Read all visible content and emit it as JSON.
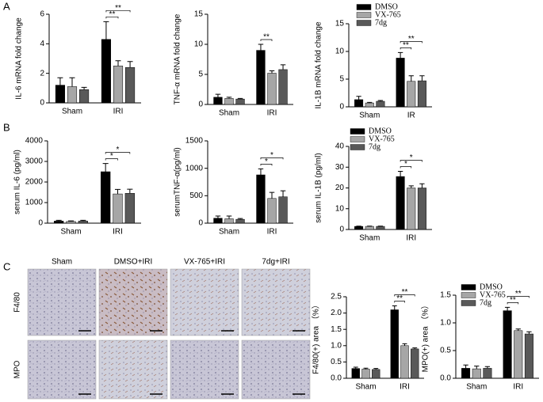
{
  "figure": {
    "panel_labels": [
      "A",
      "B",
      "C"
    ]
  },
  "micrographs": {
    "columns": [
      "Sham",
      "DMSO+IRI",
      "VX-765+IRI",
      "7dg+IRI"
    ],
    "rows": [
      "F4/80",
      "MPO"
    ]
  },
  "chart_data": [
    {
      "type": "bar",
      "ylabel": "IL-6 mRNA fold change",
      "categories": [
        "Sham",
        "IRI"
      ],
      "ylim": [
        0,
        6
      ],
      "yticks": [
        0,
        2,
        4,
        6
      ],
      "series": [
        {
          "name": "DMSO",
          "color": "#000000",
          "values": [
            1.2,
            4.3
          ],
          "errors": [
            0.5,
            1.2
          ]
        },
        {
          "name": "VX-765",
          "color": "#a6a6a6",
          "values": [
            1.1,
            2.5
          ],
          "errors": [
            0.6,
            0.35
          ]
        },
        {
          "name": "7dg",
          "color": "#595959",
          "values": [
            0.9,
            2.4
          ],
          "errors": [
            0.15,
            0.4
          ]
        }
      ],
      "annotations": [
        "**",
        "**"
      ]
    },
    {
      "type": "bar",
      "ylabel": "TNF-α mRNA fold change",
      "categories": [
        "Sham",
        "IRI"
      ],
      "ylim": [
        0,
        15
      ],
      "yticks": [
        0,
        5,
        10,
        15
      ],
      "series": [
        {
          "name": "DMSO",
          "color": "#000000",
          "values": [
            1.2,
            9.0
          ],
          "errors": [
            0.5,
            1.0
          ]
        },
        {
          "name": "VX-765",
          "color": "#a6a6a6",
          "values": [
            1.0,
            5.2
          ],
          "errors": [
            0.2,
            0.4
          ]
        },
        {
          "name": "7dg",
          "color": "#595959",
          "values": [
            0.9,
            5.8
          ],
          "errors": [
            0.1,
            0.8
          ]
        }
      ],
      "annotations": [
        "**"
      ]
    },
    {
      "type": "bar",
      "ylabel": "IL-1B mRNA fold change",
      "categories": [
        "Sham",
        "IR"
      ],
      "ylim": [
        0,
        15
      ],
      "yticks": [
        0,
        5,
        10,
        15
      ],
      "legend": "top",
      "series": [
        {
          "name": "DMSO",
          "color": "#000000",
          "values": [
            1.3,
            8.8
          ],
          "errors": [
            0.6,
            1.0
          ]
        },
        {
          "name": "VX-765",
          "color": "#a6a6a6",
          "values": [
            0.7,
            4.6
          ],
          "errors": [
            0.1,
            1.0
          ]
        },
        {
          "name": "7dg",
          "color": "#595959",
          "values": [
            1.0,
            4.7
          ],
          "errors": [
            0.15,
            0.9
          ]
        }
      ],
      "annotations": [
        "**",
        "**"
      ]
    },
    {
      "type": "bar",
      "ylabel": "serum IL-6 (pg/ml)",
      "categories": [
        "Sham",
        "IRI"
      ],
      "ylim": [
        0,
        4000
      ],
      "yticks": [
        0,
        1000,
        2000,
        3000,
        4000
      ],
      "series": [
        {
          "name": "DMSO",
          "color": "#000000",
          "values": [
            100,
            2500
          ],
          "errors": [
            40,
            400
          ]
        },
        {
          "name": "VX-765",
          "color": "#a6a6a6",
          "values": [
            80,
            1420
          ],
          "errors": [
            30,
            220
          ]
        },
        {
          "name": "7dg",
          "color": "#595959",
          "values": [
            100,
            1450
          ],
          "errors": [
            40,
            200
          ]
        }
      ],
      "annotations": [
        "*",
        "*"
      ]
    },
    {
      "type": "bar",
      "ylabel": "serumTNF-α(pg/ml)",
      "categories": [
        "Sham",
        "IRI"
      ],
      "ylim": [
        0,
        1500
      ],
      "yticks": [
        0,
        500,
        1000,
        1500
      ],
      "series": [
        {
          "name": "DMSO",
          "color": "#000000",
          "values": [
            90,
            880
          ],
          "errors": [
            40,
            110
          ]
        },
        {
          "name": "VX-765",
          "color": "#a6a6a6",
          "values": [
            80,
            450
          ],
          "errors": [
            50,
            110
          ]
        },
        {
          "name": "7dg",
          "color": "#595959",
          "values": [
            70,
            480
          ],
          "errors": [
            15,
            110
          ]
        }
      ],
      "annotations": [
        "*",
        "*"
      ]
    },
    {
      "type": "bar",
      "ylabel": "serum IL-1B (pg/ml)",
      "categories": [
        "Sham",
        "IRI"
      ],
      "ylim": [
        0,
        40
      ],
      "yticks": [
        0,
        10,
        20,
        30,
        40
      ],
      "legend": "top",
      "series": [
        {
          "name": "DMSO",
          "color": "#000000",
          "values": [
            1.5,
            25.5
          ],
          "errors": [
            0.1,
            2.5
          ]
        },
        {
          "name": "VX-765",
          "color": "#a6a6a6",
          "values": [
            1.5,
            20
          ],
          "errors": [
            0.1,
            1.0
          ]
        },
        {
          "name": "7dg",
          "color": "#595959",
          "values": [
            1.5,
            20
          ],
          "errors": [
            0.1,
            2.0
          ]
        }
      ],
      "annotations": [
        "*",
        "*"
      ]
    },
    {
      "type": "bar",
      "ylabel": "F4/80(+) area （%）",
      "categories": [
        "Sham",
        "IRI"
      ],
      "ylim": [
        0,
        2.5
      ],
      "yticks": [
        {
          "value": 0,
          "label": "0.0"
        },
        {
          "value": 0.5,
          "label": "0.5"
        },
        {
          "value": 1,
          "label": "1.0"
        },
        {
          "value": 1.5,
          "label": "1.5"
        },
        {
          "value": 2,
          "label": "2.0"
        },
        {
          "value": 2.5,
          "label": "2.5"
        }
      ],
      "series": [
        {
          "name": "DMSO",
          "color": "#000000",
          "values": [
            0.3,
            2.1
          ],
          "errors": [
            0.04,
            0.12
          ]
        },
        {
          "name": "VX-765",
          "color": "#a6a6a6",
          "values": [
            0.28,
            1.0
          ],
          "errors": [
            0.03,
            0.06
          ]
        },
        {
          "name": "7dg",
          "color": "#595959",
          "values": [
            0.27,
            0.9
          ],
          "errors": [
            0.03,
            0.03
          ]
        }
      ],
      "annotations": [
        "**",
        "**"
      ]
    },
    {
      "type": "bar",
      "ylabel": "MPO(+) area （%）",
      "categories": [
        "Sham",
        "IRI"
      ],
      "ylim": [
        0,
        1.5
      ],
      "yticks": [
        {
          "value": 0,
          "label": "0.0"
        },
        {
          "value": 0.5,
          "label": "0.5"
        },
        {
          "value": 1,
          "label": "1.0"
        },
        {
          "value": 1.5,
          "label": "1.5"
        }
      ],
      "legend": "top",
      "series": [
        {
          "name": "DMSO",
          "color": "#000000",
          "values": [
            0.18,
            1.22
          ],
          "errors": [
            0.06,
            0.06
          ]
        },
        {
          "name": "VX-765",
          "color": "#a6a6a6",
          "values": [
            0.17,
            0.86
          ],
          "errors": [
            0.05,
            0.03
          ]
        },
        {
          "name": "7dg",
          "color": "#595959",
          "values": [
            0.18,
            0.8
          ],
          "errors": [
            0.03,
            0.04
          ]
        }
      ],
      "annotations": [
        "**",
        "**"
      ]
    }
  ]
}
